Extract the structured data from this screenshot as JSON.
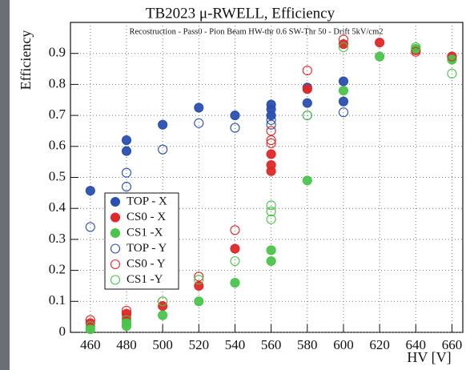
{
  "chart_data": {
    "type": "scatter",
    "title": "TB2023 μ-RWELL, Efficiency",
    "subtitle": "Recostruction - Pass0 - Pion Beam HW-thr 0.6 SW-Thr 50 - Drift 5kV/cm2",
    "x_label": "HV [V]",
    "y_label": "Efficiency",
    "xlim": [
      449,
      666
    ],
    "ylim": [
      0,
      1.0
    ],
    "xticks": [
      460,
      480,
      500,
      520,
      540,
      560,
      580,
      600,
      620,
      640,
      660
    ],
    "yticks": [
      0,
      0.1,
      0.2,
      0.3,
      0.4,
      0.5,
      0.6,
      0.7,
      0.8,
      0.9
    ],
    "grid": true,
    "legend": "lower-left",
    "series": [
      {
        "name": "TOP - X",
        "color": "#2a4fb0",
        "filled": true,
        "x": [
          460,
          480,
          480,
          500,
          520,
          540,
          560,
          560,
          560,
          580,
          580,
          600,
          600
        ],
        "y": [
          0.457,
          0.62,
          0.585,
          0.67,
          0.725,
          0.7,
          0.735,
          0.72,
          0.7,
          0.79,
          0.74,
          0.81,
          0.745
        ]
      },
      {
        "name": "CS0 - X",
        "color": "#e02828",
        "filled": true,
        "x": [
          460,
          480,
          480,
          500,
          520,
          540,
          560,
          560,
          560,
          580,
          600,
          620,
          640,
          660
        ],
        "y": [
          0.03,
          0.06,
          0.045,
          0.085,
          0.15,
          0.27,
          0.575,
          0.54,
          0.52,
          0.785,
          0.93,
          0.935,
          0.91,
          0.89
        ]
      },
      {
        "name": "CS1 -X",
        "color": "#4cc44c",
        "filled": true,
        "x": [
          460,
          480,
          480,
          500,
          520,
          540,
          560,
          560,
          580,
          600,
          620,
          640,
          660
        ],
        "y": [
          0.01,
          0.02,
          0.03,
          0.055,
          0.1,
          0.16,
          0.265,
          0.23,
          0.49,
          0.78,
          0.89,
          0.915,
          0.88
        ]
      },
      {
        "name": "TOP - Y",
        "color": "#2a4fb0",
        "filled": false,
        "x": [
          460,
          480,
          480,
          500,
          520,
          540,
          560,
          560,
          580,
          600
        ],
        "y": [
          0.34,
          0.515,
          0.47,
          0.59,
          0.675,
          0.66,
          0.685,
          0.67,
          0.7,
          0.71
        ]
      },
      {
        "name": "CS0 - Y",
        "color": "#e02828",
        "filled": false,
        "x": [
          460,
          480,
          480,
          500,
          520,
          540,
          560,
          560,
          560,
          580,
          600,
          640,
          660
        ],
        "y": [
          0.04,
          0.07,
          0.06,
          0.1,
          0.18,
          0.33,
          0.65,
          0.62,
          0.61,
          0.845,
          0.945,
          0.905,
          0.89
        ]
      },
      {
        "name": "CS1 -Y",
        "color": "#4cc44c",
        "filled": false,
        "x": [
          460,
          480,
          500,
          520,
          540,
          560,
          560,
          560,
          580,
          600,
          640,
          660
        ],
        "y": [
          0.02,
          0.04,
          0.1,
          0.17,
          0.23,
          0.41,
          0.39,
          0.365,
          0.7,
          0.92,
          0.92,
          0.835
        ]
      }
    ]
  }
}
